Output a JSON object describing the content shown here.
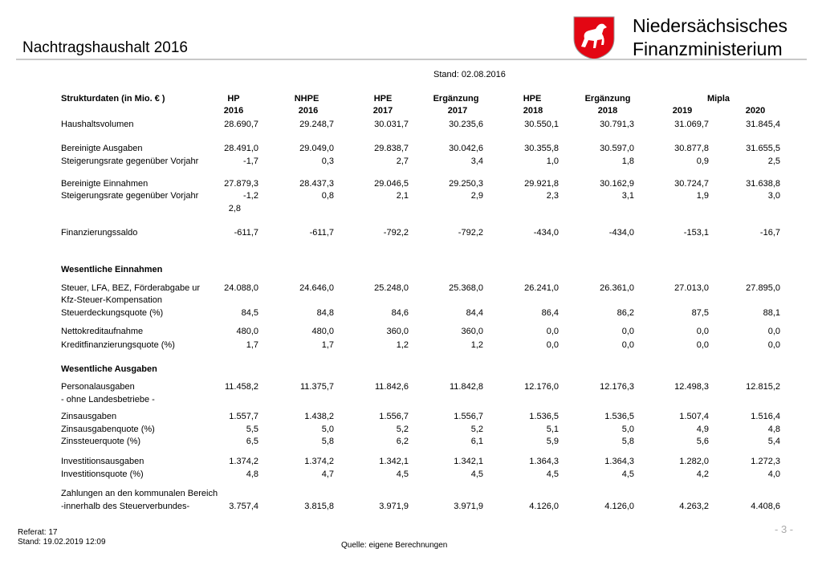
{
  "header": {
    "title": "Nachtragshaushalt 2016",
    "org_line1": "Niedersächsisches",
    "org_line2": "Finanzministerium",
    "stand": "Stand: 02.08.2016"
  },
  "table": {
    "corner": "Strukturdaten  (in Mio. € )",
    "header1": [
      "HP",
      "NHPE",
      "HPE",
      "Ergänzung",
      "HPE",
      "Ergänzung",
      "Mipla"
    ],
    "header2": [
      "2016",
      "2016",
      "2017",
      "2017",
      "2018",
      "2018",
      "2019",
      "2020"
    ],
    "rows": [
      {
        "label": "Haushaltsvolumen",
        "values": [
          "28.690,7",
          "29.248,7",
          "30.031,7",
          "30.235,6",
          "30.550,1",
          "30.791,3",
          "31.069,7",
          "31.845,4"
        ]
      },
      {
        "label": "Bereinigte Ausgaben",
        "values": [
          "28.491,0",
          "29.049,0",
          "29.838,7",
          "30.042,6",
          "30.355,8",
          "30.597,0",
          "30.877,8",
          "31.655,5"
        ]
      },
      {
        "label": "Steigerungsrate gegenüber Vorjahr",
        "values": [
          "-1,7",
          "0,3",
          "2,7",
          "3,4",
          "1,0",
          "1,8",
          "0,9",
          "2,5"
        ]
      },
      {
        "label": "Bereinigte Einnahmen",
        "values": [
          "27.879,3",
          "28.437,3",
          "29.046,5",
          "29.250,3",
          "29.921,8",
          "30.162,9",
          "30.724,7",
          "31.638,8"
        ]
      },
      {
        "label": "Steigerungsrate gegenüber Vorjahr",
        "values": [
          "-1,2",
          "0,8",
          "2,1",
          "2,9",
          "2,3",
          "3,1",
          "1,9",
          "3,0"
        ]
      },
      {
        "label": "Finanzierungssaldo",
        "values": [
          "-611,7",
          "-611,7",
          "-792,2",
          "-792,2",
          "-434,0",
          "-434,0",
          "-153,1",
          "-16,7"
        ]
      },
      {
        "label": "Wesentliche Einnahmen",
        "section": true
      },
      {
        "label": "Steuer, LFA, BEZ, Förderabgabe ur",
        "values": [
          "24.088,0",
          "24.646,0",
          "25.248,0",
          "25.368,0",
          "26.241,0",
          "26.361,0",
          "27.013,0",
          "27.895,0"
        ]
      },
      {
        "label": "Kfz-Steuer-Kompensation"
      },
      {
        "label": "Steuerdeckungsquote (%)",
        "values": [
          "84,5",
          "84,8",
          "84,6",
          "84,4",
          "86,4",
          "86,2",
          "87,5",
          "88,1"
        ]
      },
      {
        "label": "Nettokreditaufnahme",
        "values": [
          "480,0",
          "480,0",
          "360,0",
          "360,0",
          "0,0",
          "0,0",
          "0,0",
          "0,0"
        ]
      },
      {
        "label": "Kreditfinanzierungsquote (%)",
        "values": [
          "1,7",
          "1,7",
          "1,2",
          "1,2",
          "0,0",
          "0,0",
          "0,0",
          "0,0"
        ]
      },
      {
        "label": "Wesentliche Ausgaben",
        "section": true
      },
      {
        "label": "Personalausgaben",
        "values": [
          "11.458,2",
          "11.375,7",
          "11.842,6",
          "11.842,8",
          "12.176,0",
          "12.176,3",
          "12.498,3",
          "12.815,2"
        ]
      },
      {
        "label": "- ohne Landesbetriebe -"
      },
      {
        "label": "Zinsausgaben",
        "values": [
          "1.557,7",
          "1.438,2",
          "1.556,7",
          "1.556,7",
          "1.536,5",
          "1.536,5",
          "1.507,4",
          "1.516,4"
        ]
      },
      {
        "label": "Zinsausgabenquote (%)",
        "values": [
          "5,5",
          "5,0",
          "5,2",
          "5,2",
          "5,1",
          "5,0",
          "4,9",
          "4,8"
        ]
      },
      {
        "label": "Zinssteuerquote (%)",
        "values": [
          "6,5",
          "5,8",
          "6,2",
          "6,1",
          "5,9",
          "5,8",
          "5,6",
          "5,4"
        ]
      },
      {
        "label": "Investitionsausgaben",
        "values": [
          "1.374,2",
          "1.374,2",
          "1.342,1",
          "1.342,1",
          "1.364,3",
          "1.364,3",
          "1.282,0",
          "1.272,3"
        ]
      },
      {
        "label": "Investitionsquote (%)",
        "values": [
          "4,8",
          "4,7",
          "4,5",
          "4,5",
          "4,5",
          "4,5",
          "4,2",
          "4,0"
        ]
      },
      {
        "label": "Zahlungen an den kommunalen Bereich"
      },
      {
        "label": "-innerhalb des Steuerverbundes-",
        "values": [
          "3.757,4",
          "3.815,8",
          "3.971,9",
          "3.971,9",
          "4.126,0",
          "4.126,0",
          "4.263,2",
          "4.408,6"
        ]
      }
    ],
    "stray_value": "2,8"
  },
  "footer": {
    "referat": "Referat: 17",
    "stand": "Stand: 19.02.2019 12:09",
    "source": "Quelle: eigene Berechnungen",
    "page": "- 3 -"
  }
}
